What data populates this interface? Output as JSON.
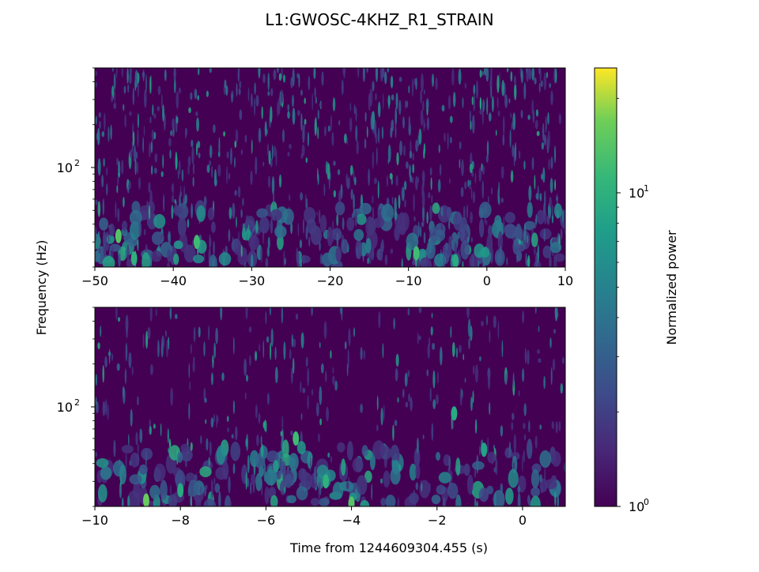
{
  "chart_data": {
    "type": "heatmap",
    "title": "L1:GWOSC-4KHZ_R1_STRAIN",
    "ylabel": "Frequency (Hz)",
    "xlabel": "Time from 1244609304.455 (s)",
    "panels": [
      {
        "name": "top",
        "xlim": [
          -50,
          10
        ],
        "xticks": [
          -50,
          -40,
          -30,
          -20,
          -10,
          0,
          10
        ],
        "xtick_labels": [
          "−50",
          "−40",
          "−30",
          "−20",
          "−10",
          "0",
          "10"
        ],
        "ylim_hz": [
          20,
          500
        ],
        "y_scale": "log",
        "yticks": [
          {
            "value": 100,
            "base": "10",
            "exp": "2"
          }
        ],
        "hotspots": [
          {
            "t": -47.0,
            "f": 33,
            "power": 14
          },
          {
            "t": -45.0,
            "f": 23,
            "power": 10
          },
          {
            "t": -37.0,
            "f": 30,
            "power": 12
          },
          {
            "t": -9.0,
            "f": 25,
            "power": 12
          },
          {
            "t": -4.0,
            "f": 22,
            "power": 9
          }
        ]
      },
      {
        "name": "bottom",
        "xlim": [
          -10,
          1
        ],
        "xticks": [
          -10,
          -8,
          -6,
          -4,
          -2,
          0
        ],
        "xtick_labels": [
          "−10",
          "−8",
          "−6",
          "−4",
          "−2",
          "0"
        ],
        "ylim_hz": [
          20,
          500
        ],
        "y_scale": "log",
        "yticks": [
          {
            "value": 100,
            "base": "10",
            "exp": "2"
          }
        ],
        "hotspots": [
          {
            "t": -8.8,
            "f": 22,
            "power": 16
          },
          {
            "t": -8.0,
            "f": 26,
            "power": 9
          },
          {
            "t": -5.3,
            "f": 60,
            "power": 12
          },
          {
            "t": -4.6,
            "f": 30,
            "power": 10
          },
          {
            "t": -4.0,
            "f": 21,
            "power": 14
          },
          {
            "t": -1.6,
            "f": 90,
            "power": 9
          },
          {
            "t": -0.9,
            "f": 50,
            "power": 8
          }
        ]
      }
    ],
    "colorbar": {
      "label": "Normalized power",
      "scale": "log",
      "colormap": "viridis",
      "range": [
        1,
        25
      ],
      "ticks": [
        {
          "value": 1,
          "base": "10",
          "exp": "0"
        },
        {
          "value": 10,
          "base": "10",
          "exp": "1"
        }
      ]
    }
  }
}
